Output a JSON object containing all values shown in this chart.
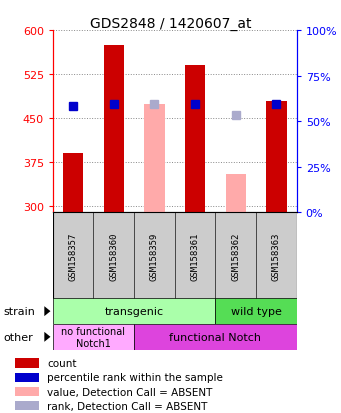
{
  "title": "GDS2848 / 1420607_at",
  "samples": [
    "GSM158357",
    "GSM158360",
    "GSM158359",
    "GSM158361",
    "GSM158362",
    "GSM158363"
  ],
  "ylim_left": [
    290,
    600
  ],
  "ylim_right": [
    0,
    100
  ],
  "yticks_left": [
    300,
    375,
    450,
    525,
    600
  ],
  "yticks_right": [
    0,
    25,
    50,
    75,
    100
  ],
  "bar_values": [
    390,
    575,
    null,
    540,
    null,
    480
  ],
  "bar_color_present": "#cc0000",
  "bar_color_absent": "#ffaaaa",
  "rank_values_present": [
    470,
    475,
    null,
    475,
    null,
    475
  ],
  "rank_values_absent": [
    null,
    null,
    475,
    null,
    455,
    null
  ],
  "rank_color_present": "#0000cc",
  "rank_color_absent": "#aaaacc",
  "detection_call": [
    "P",
    "P",
    "A",
    "P",
    "A",
    "P"
  ],
  "absent_bar_values": [
    null,
    null,
    475,
    null,
    355,
    null
  ],
  "strain_transgenic_cols": 4,
  "strain_wildtype_cols": 2,
  "strain_transgenic_color": "#aaffaa",
  "strain_wildtype_color": "#55dd55",
  "other_nofunc_cols": 2,
  "other_func_cols": 4,
  "other_nofunc_color": "#ffaaff",
  "other_func_color": "#dd44dd",
  "legend_items": [
    {
      "label": "count",
      "color": "#cc0000"
    },
    {
      "label": "percentile rank within the sample",
      "color": "#0000cc"
    },
    {
      "label": "value, Detection Call = ABSENT",
      "color": "#ffaaaa"
    },
    {
      "label": "rank, Detection Call = ABSENT",
      "color": "#aaaacc"
    }
  ],
  "bg_color": "#ffffff",
  "bar_width": 0.5,
  "rank_marker_size": 6,
  "base_value": 290,
  "grid_color": "#888888",
  "label_bg": "#cccccc"
}
